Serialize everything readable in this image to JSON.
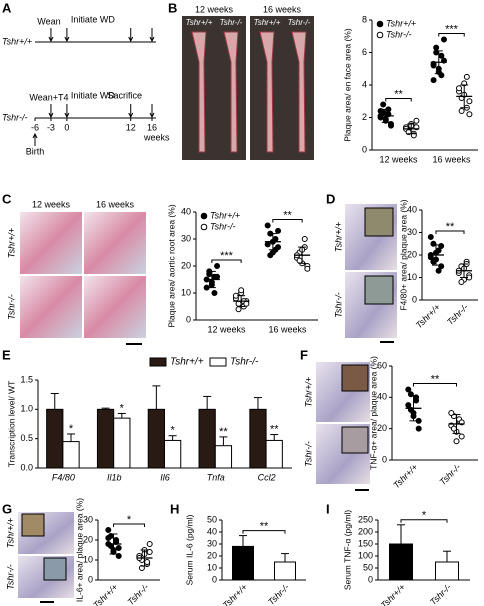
{
  "panels": [
    "A",
    "B",
    "C",
    "D",
    "E",
    "F",
    "G",
    "H",
    "I"
  ],
  "timeline": {
    "rows": [
      {
        "genotype": "Tshr+/+",
        "events": [
          {
            "label": "Wean",
            "week": -3
          },
          {
            "label": "Initiate WD",
            "week": 0
          }
        ]
      },
      {
        "genotype": "Tshr-/-",
        "events": [
          {
            "label": "Wean+T4",
            "week": -3
          },
          {
            "label": "Initiate WD",
            "week": 0
          }
        ]
      }
    ],
    "sacrifice": {
      "label": "Sacrifice",
      "weeks": [
        12,
        16
      ]
    },
    "birth": {
      "label": "Birth",
      "week": -6
    },
    "ticks": [
      -6,
      -3,
      0,
      12,
      16
    ],
    "unit": "weeks"
  },
  "images": {
    "B": {
      "columns": [
        "12 weeks",
        "16 weeks"
      ],
      "genotypes": [
        "Tshr+/+",
        "Tshr-/-",
        "Tshr+/+",
        "Tshr-/-"
      ]
    },
    "C": {
      "columns": [
        "12 weeks",
        "16 weeks"
      ],
      "rows": [
        "Tshr+/+",
        "Tshr-/-"
      ]
    },
    "D": {
      "rows": [
        "Tshr+/+",
        "Tshr-/-"
      ]
    },
    "F": {
      "rows": [
        "Tshr+/+",
        "Tshr-/-"
      ]
    },
    "G": {
      "rows": [
        "Tshr+/+",
        "Tshr-/-"
      ]
    }
  },
  "chart_data": [
    {
      "type": "dot",
      "y_label": "Plaque area/ en face area (%)",
      "categories": [
        "12 weeks",
        "16 weeks"
      ],
      "ylim": [
        0,
        8
      ],
      "yticks": [
        0,
        2,
        4,
        6,
        8
      ],
      "series": [
        {
          "name": "Tshr+/+",
          "color": "#000000",
          "filled": true,
          "values": [
            [
              2.0,
              2.3,
              1.8,
              2.5,
              1.6,
              2.1,
              2.8,
              1.9,
              2.2,
              1.5,
              2.4
            ],
            [
              5.2,
              6.3,
              4.8,
              5.8,
              5.5,
              4.3,
              6.0,
              5.0,
              4.6,
              6.8,
              5.3
            ]
          ],
          "mean": [
            2.1,
            5.4
          ],
          "sd": [
            0.4,
            0.7
          ]
        },
        {
          "name": "Tshr-/-",
          "color": "#000000",
          "filled": false,
          "values": [
            [
              1.4,
              1.2,
              1.6,
              1.0,
              1.8,
              1.3,
              1.1,
              1.5,
              0.9,
              1.4
            ],
            [
              3.6,
              3.2,
              4.1,
              2.6,
              3.0,
              3.8,
              2.4,
              3.4,
              4.5,
              2.2
            ]
          ],
          "mean": [
            1.3,
            3.3
          ],
          "sd": [
            0.3,
            0.7
          ]
        }
      ],
      "significance": [
        "**",
        "***"
      ]
    },
    {
      "type": "dot",
      "y_label": "Plaque area/ aortic root area (%)",
      "categories": [
        "12 weeks",
        "16 weeks"
      ],
      "ylim": [
        0,
        40
      ],
      "yticks": [
        0,
        10,
        20,
        30,
        40
      ],
      "series": [
        {
          "name": "Tshr+/+",
          "color": "#000000",
          "filled": true,
          "values": [
            [
              15,
              18,
              13,
              16,
              20,
              12,
              17,
              14,
              10,
              16
            ],
            [
              28,
              32,
              25,
              30,
              27,
              35,
              24,
              29,
              26,
              33
            ]
          ],
          "mean": [
            15,
            29
          ],
          "sd": [
            3,
            3
          ]
        },
        {
          "name": "Tshr-/-",
          "color": "#000000",
          "filled": false,
          "values": [
            [
              8,
              6,
              10,
              5,
              7,
              9,
              4,
              11,
              7,
              6
            ],
            [
              23,
              25,
              21,
              27,
              20,
              24,
              22,
              26,
              30,
              19
            ]
          ],
          "mean": [
            7,
            24
          ],
          "sd": [
            2,
            3
          ]
        }
      ],
      "significance": [
        "***",
        "**"
      ]
    },
    {
      "type": "dot",
      "y_label": "F4/80+ area/ plaque area (%)",
      "categories": [
        "Tshr+/+",
        "Tshr-/-"
      ],
      "ylim": [
        0,
        40
      ],
      "yticks": [
        0,
        10,
        20,
        30,
        40
      ],
      "groups": [
        {
          "filled": true,
          "values": [
            20,
            25,
            18,
            22,
            15,
            28,
            17,
            21,
            13,
            24,
            19
          ],
          "mean": 20,
          "sd": 4.5
        },
        {
          "filled": false,
          "values": [
            12,
            15,
            9,
            17,
            11,
            13,
            8,
            14,
            16,
            10
          ],
          "mean": 13,
          "sd": 3
        }
      ],
      "significance": "**"
    },
    {
      "type": "bar",
      "y_label": "Transcription level/ WT",
      "categories": [
        "F4/80",
        "Il1b",
        "Il6",
        "Tnfa",
        "Ccl2"
      ],
      "ylim": [
        0,
        1.5
      ],
      "yticks": [
        {
          "value": 0,
          "label": "0.0"
        },
        {
          "value": 0.5,
          "label": "0.5"
        },
        {
          "value": 1,
          "label": "1.0"
        },
        {
          "value": 1.5,
          "label": "1.5"
        }
      ],
      "series": [
        {
          "name": "Tshr+/+",
          "color": "#2a1a14",
          "values": [
            1,
            1,
            1,
            1,
            1
          ],
          "errors": [
            0.27,
            0.02,
            0.4,
            0.22,
            0.2
          ]
        },
        {
          "name": "Tshr-/-",
          "color": "#ffffff",
          "values": [
            0.45,
            0.85,
            0.47,
            0.38,
            0.47
          ],
          "errors": [
            0.13,
            0.08,
            0.08,
            0.15,
            0.1
          ]
        }
      ],
      "significance": [
        "*",
        "*",
        "*",
        "**",
        "**"
      ]
    },
    {
      "type": "dot",
      "y_label": "TNF-α+ area/ plaque area (%)",
      "categories": [
        "Tshr+/+",
        "Tshr-/-"
      ],
      "ylim": [
        0,
        60
      ],
      "yticks": [
        0,
        20,
        40,
        60
      ],
      "groups": [
        {
          "filled": true,
          "values": [
            35,
            42,
            30,
            38,
            25,
            45,
            32,
            28,
            40,
            20
          ],
          "mean": 33,
          "sd": 8
        },
        {
          "filled": false,
          "values": [
            22,
            28,
            18,
            25,
            15,
            30,
            20,
            12,
            26,
            24
          ],
          "mean": 23,
          "sd": 6
        }
      ],
      "significance": "**"
    },
    {
      "type": "dot",
      "y_label": "IL-6+ area/ plaque area (%)",
      "categories": [
        "Tshr+/+",
        "Tshr-/-"
      ],
      "ylim": [
        0,
        30
      ],
      "yticks": [
        0,
        10,
        20,
        30
      ],
      "groups": [
        {
          "filled": true,
          "values": [
            18,
            22,
            15,
            20,
            12,
            25,
            17,
            14,
            19,
            16,
            21
          ],
          "mean": 18,
          "sd": 5
        },
        {
          "filled": false,
          "values": [
            12,
            10,
            15,
            8,
            18,
            11,
            6,
            13,
            9,
            14
          ],
          "mean": 11,
          "sd": 4
        }
      ],
      "significance": "*"
    },
    {
      "type": "bar",
      "y_label": "Serum IL-6 (pg/ml)",
      "categories": [
        "Tshr+/+",
        "Tshr-/-"
      ],
      "ylim": [
        0,
        50
      ],
      "yticks": [
        0,
        10,
        20,
        30,
        40,
        50
      ],
      "values": [
        28,
        15
      ],
      "errors": [
        9,
        7
      ],
      "colors": [
        "#000000",
        "#ffffff"
      ],
      "significance": "**"
    },
    {
      "type": "bar",
      "y_label": "Serum TNF-α (pg/ml)",
      "categories": [
        "Tshr+/+",
        "Tshr-/-"
      ],
      "ylim": [
        0,
        250
      ],
      "yticks": [
        0,
        50,
        100,
        150,
        200,
        250
      ],
      "values": [
        150,
        75
      ],
      "errors": [
        80,
        45
      ],
      "colors": [
        "#000000",
        "#ffffff"
      ],
      "significance": "*"
    }
  ]
}
